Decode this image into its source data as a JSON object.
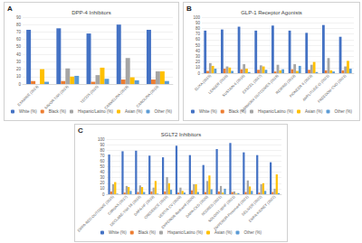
{
  "chart_data": [
    {
      "type": "bar",
      "title": "DPP-4 Inhibitors",
      "annotations": [
        "A"
      ],
      "categories": [
        "EXAMINE (2013)",
        "SAVOR-TIMI (2013)",
        "TECOS (2015)",
        "CARMELINA (2018)",
        "CAROLINA (2019)"
      ],
      "series": [
        {
          "name": "White (%)",
          "color": "#4472c4",
          "values": [
            73,
            75,
            68,
            80,
            73
          ]
        },
        {
          "name": "Black (%)",
          "color": "#ed7d31",
          "values": [
            4,
            4,
            3,
            6,
            6
          ]
        },
        {
          "name": "Hispanic/Latino (%)",
          "color": "#a5a5a5",
          "values": [
            null,
            21,
            12,
            35,
            17
          ]
        },
        {
          "name": "Asian (%)",
          "color": "#ffc000",
          "values": [
            20,
            10,
            22,
            9,
            17
          ]
        },
        {
          "name": "Other (%)",
          "color": "#5b9bd5",
          "values": [
            3,
            11,
            7,
            5,
            4
          ]
        }
      ],
      "ylim": [
        0,
        90
      ],
      "yticks": [
        0,
        10,
        20,
        30,
        40,
        50,
        60,
        70,
        80,
        90
      ],
      "grid": true,
      "legend": "bottom"
    },
    {
      "type": "bar",
      "title": "GLP-1 Receptor Agonists",
      "annotations": [
        "B"
      ],
      "categories": [
        "ELIXA (2015)",
        "LEADER (2016)",
        "SUSTAIN-6 (2016)",
        "EXSCEL (2017)",
        "HARMONY OUTCOMES (2018)",
        "REWIND (2019)",
        "PIONEER 6 (2019)",
        "AMPLITUDE-O (2021)",
        "FREEDOM-CVO (2021)"
      ],
      "series": [
        {
          "name": "White (%)",
          "color": "#4472c4",
          "values": [
            76,
            78,
            83,
            76,
            85,
            76,
            72,
            86,
            65
          ]
        },
        {
          "name": "Black (%)",
          "color": "#ed7d31",
          "values": [
            4,
            8,
            7,
            6,
            3,
            7,
            6,
            5,
            5
          ]
        },
        {
          "name": "Hispanic/Latino (%)",
          "color": "#a5a5a5",
          "values": [
            18,
            12,
            16,
            14,
            15,
            16,
            15,
            27,
            12
          ]
        },
        {
          "name": "Asian (%)",
          "color": "#ffc000",
          "values": [
            13,
            10,
            8,
            12,
            5,
            4,
            20,
            5,
            22
          ]
        },
        {
          "name": "Other (%)",
          "color": "#5b9bd5",
          "values": [
            8,
            4,
            2,
            6,
            7,
            13,
            2,
            3,
            8
          ]
        }
      ],
      "ylim": [
        0,
        100
      ],
      "yticks": [
        0,
        10,
        20,
        30,
        40,
        50,
        60,
        70,
        80,
        90,
        100
      ],
      "grid": true,
      "legend": "bottom"
    },
    {
      "type": "bar",
      "title": "SGLT2 Inhibitors",
      "annotations": [
        "C"
      ],
      "categories": [
        "EMPA-REG OUTCOME (2015)",
        "CANVAS (2017)",
        "DECLARE-TIMI 58 (2019)",
        "DAPA-HF (2019)",
        "CREDENCE (2019)",
        "VERTIS CV (2020)",
        "EMPEROR-Reduced (2020)",
        "DAPA-CKD (2020)",
        "SCORED (2021)",
        "SOLOIST-WHF (2021)",
        "EMPEROR-Preserved (2021)",
        "DELIVER (2022)",
        "EMPA-KIDNEY (2022)"
      ],
      "series": [
        {
          "name": "White (%)",
          "color": "#4472c4",
          "values": [
            72,
            78,
            79,
            70,
            67,
            88,
            71,
            53,
            82,
            93,
            76,
            71,
            58
          ]
        },
        {
          "name": "Black (%)",
          "color": "#ed7d31",
          "values": [
            5,
            3,
            4,
            5,
            5,
            3,
            7,
            4,
            5,
            4,
            4,
            3,
            4
          ]
        },
        {
          "name": "Hispanic/Latino (%)",
          "color": "#a5a5a5",
          "values": [
            18,
            15,
            16,
            12,
            31,
            12,
            18,
            24,
            15,
            5,
            25,
            18,
            10
          ]
        },
        {
          "name": "Asian (%)",
          "color": "#ffc000",
          "values": [
            22,
            13,
            13,
            24,
            20,
            6,
            18,
            34,
            3,
            1,
            14,
            20,
            36
          ]
        },
        {
          "name": "Other (%)",
          "color": "#5b9bd5",
          "values": [
            1,
            6,
            4,
            1,
            8,
            3,
            4,
            9,
            10,
            2,
            6,
            6,
            2
          ]
        }
      ],
      "ylim": [
        0,
        100
      ],
      "yticks": [
        0,
        10,
        20,
        30,
        40,
        50,
        60,
        70,
        80,
        90,
        100
      ],
      "grid": true,
      "legend": "bottom"
    }
  ]
}
